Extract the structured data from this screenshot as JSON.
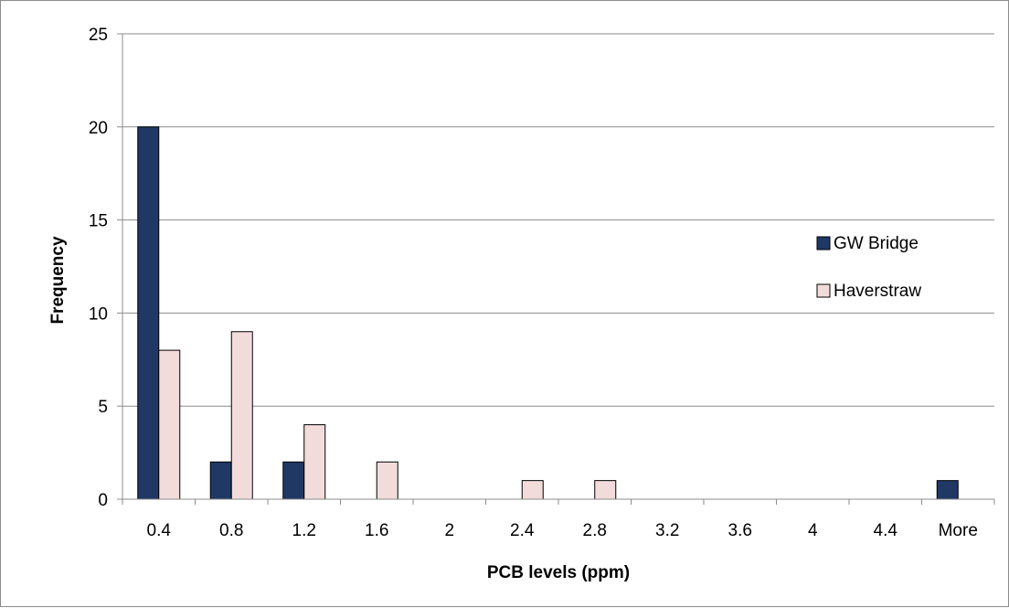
{
  "chart_data": {
    "type": "bar",
    "title": "",
    "xlabel": "PCB levels (ppm)",
    "ylabel": "Frequency",
    "categories": [
      "0.4",
      "0.8",
      "1.2",
      "1.6",
      "2",
      "2.4",
      "2.8",
      "3.2",
      "3.6",
      "4",
      "4.4",
      "More"
    ],
    "series": [
      {
        "name": "GW Bridge",
        "values": [
          20,
          2,
          2,
          0,
          0,
          0,
          0,
          0,
          0,
          0,
          0,
          1
        ],
        "color": "#1f3864"
      },
      {
        "name": "Haverstraw",
        "values": [
          8,
          9,
          4,
          2,
          0,
          1,
          1,
          0,
          0,
          0,
          0,
          0
        ],
        "color": "#f2dcdb"
      }
    ],
    "ylim": [
      0,
      25
    ],
    "yticks": [
      0,
      5,
      10,
      15,
      20,
      25
    ],
    "grid": true,
    "legend": "right"
  }
}
